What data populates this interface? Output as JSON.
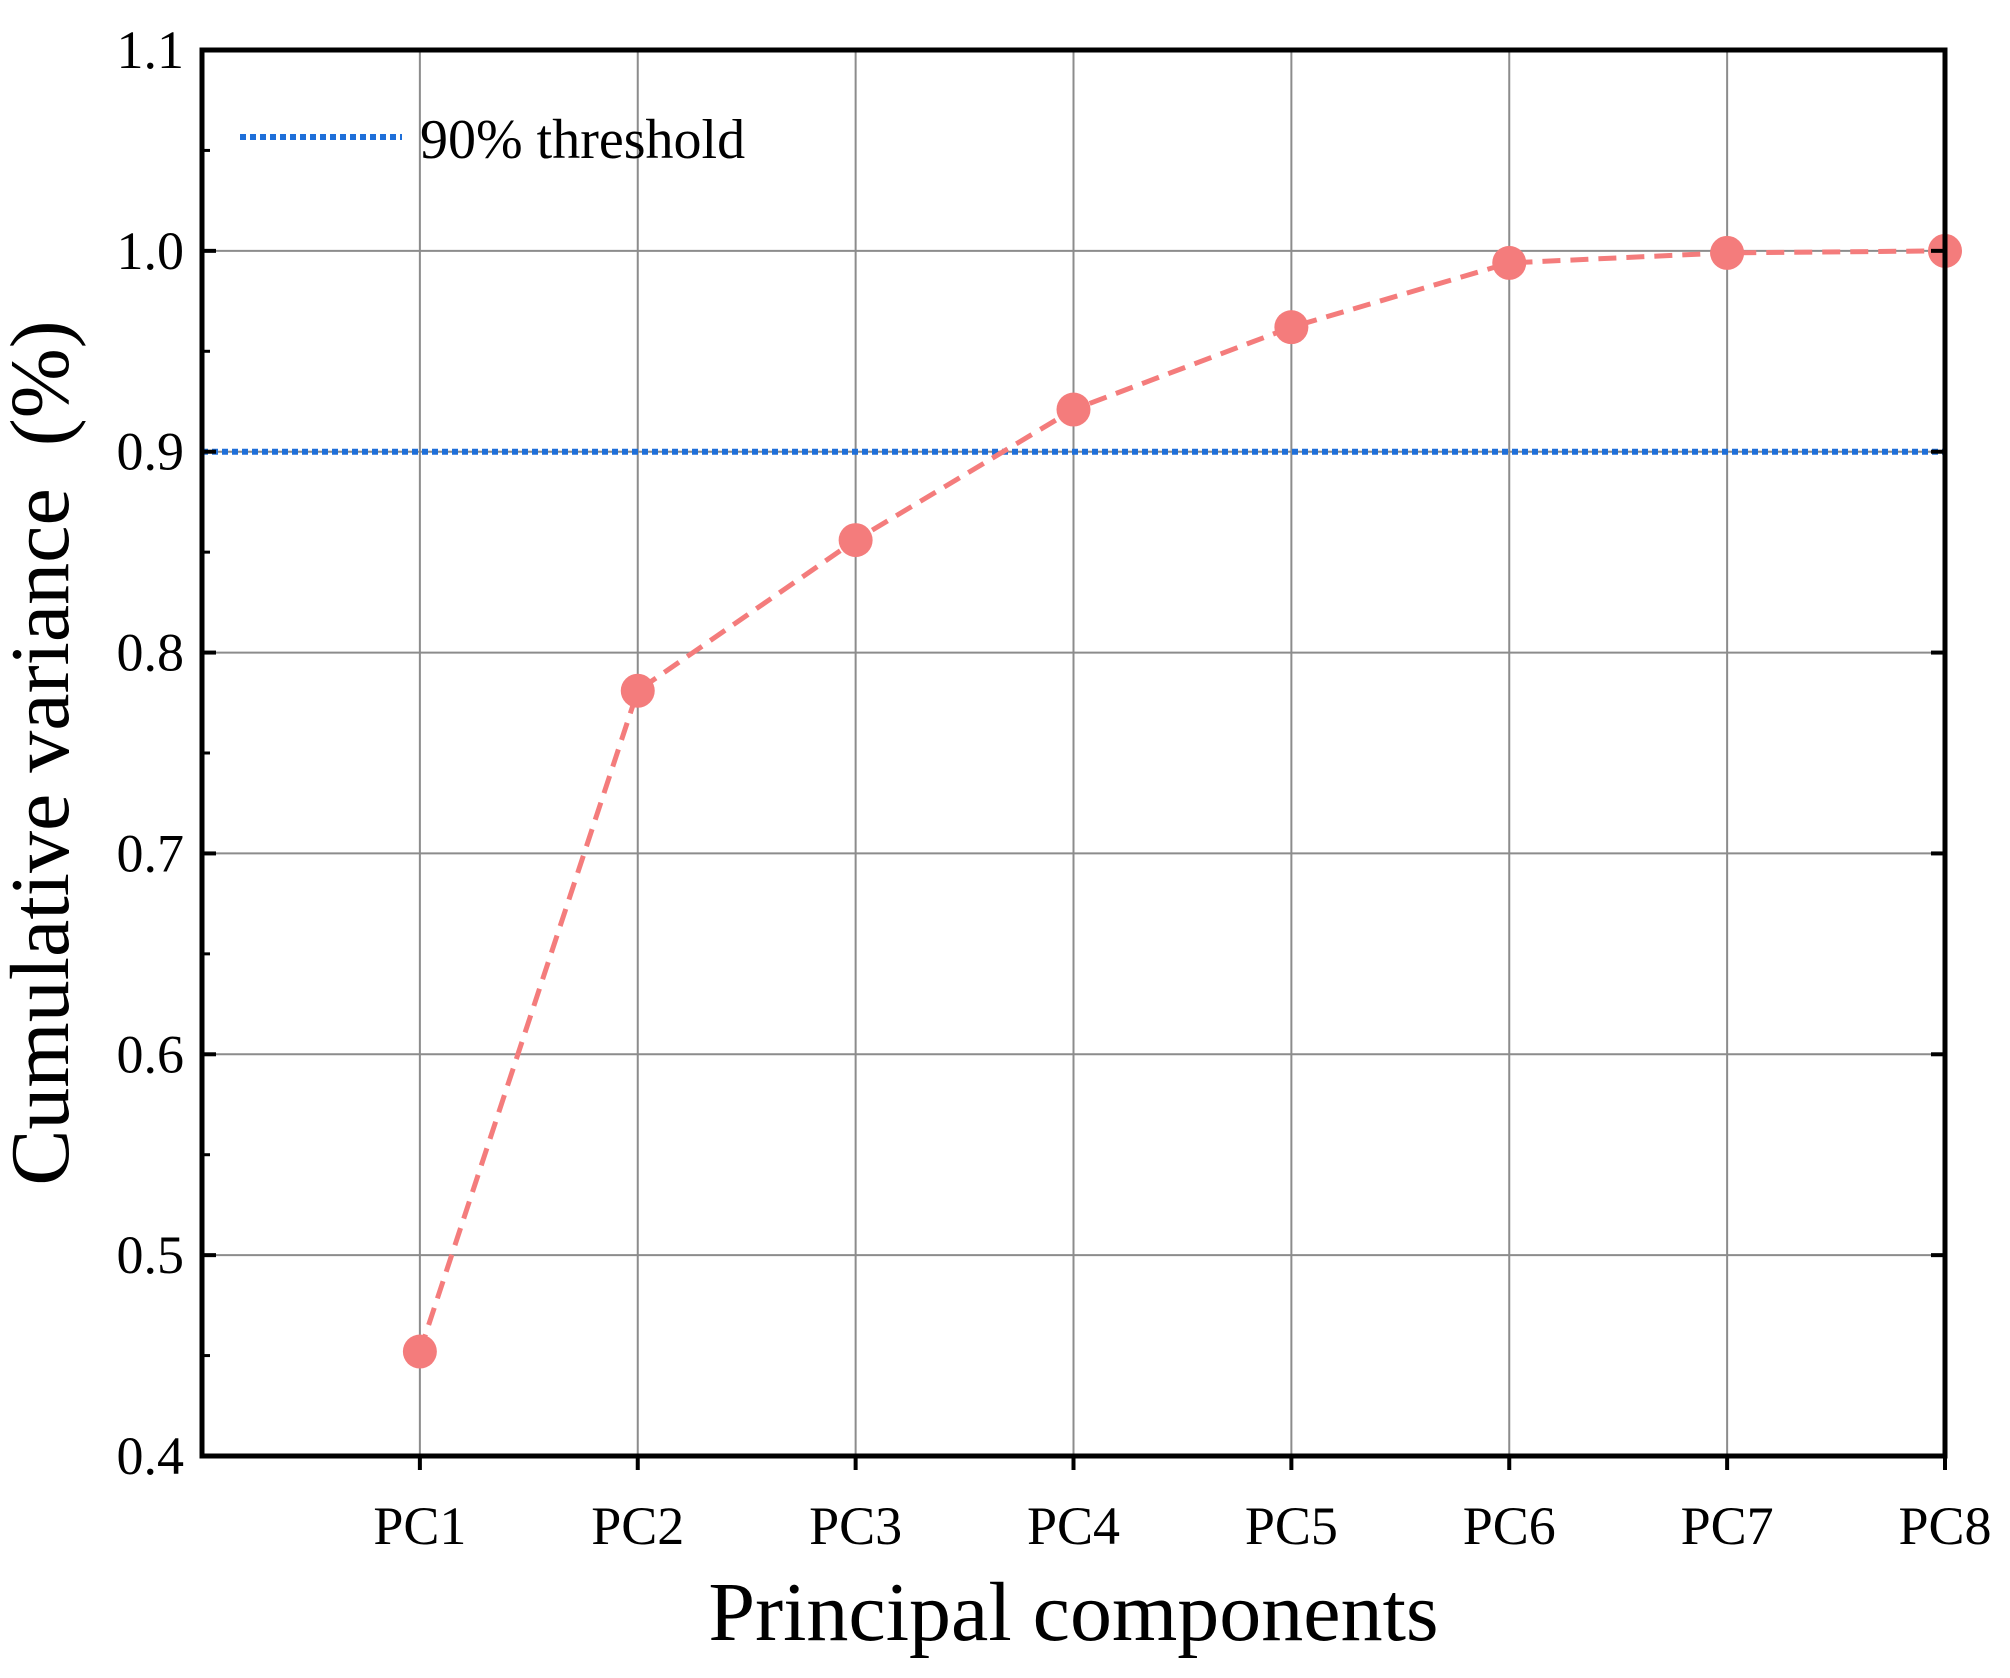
{
  "chart_data": {
    "type": "line",
    "title": "",
    "xlabel": "Principal components",
    "ylabel": "Cumulative variance  (%)",
    "categories": [
      "PC1",
      "PC2",
      "PC3",
      "PC4",
      "PC5",
      "PC6",
      "PC7",
      "PC8"
    ],
    "series": [
      {
        "name": "Cumulative variance",
        "values": [
          0.452,
          0.781,
          0.856,
          0.921,
          0.962,
          0.994,
          0.999,
          1.0
        ],
        "color": "#F47C7C",
        "line_style": "dashed",
        "marker": "circle"
      }
    ],
    "threshold": {
      "label": "90% threshold",
      "value": 0.9,
      "color": "#1E6FD9",
      "line_style": "dotted"
    },
    "ylim": [
      0.4,
      1.1
    ],
    "yticks": [
      "0.4",
      "0.5",
      "0.6",
      "0.7",
      "0.8",
      "0.9",
      "1.0",
      "1.1"
    ],
    "x_range": [
      0,
      8
    ],
    "grid": true,
    "legend_position": "top-left"
  }
}
